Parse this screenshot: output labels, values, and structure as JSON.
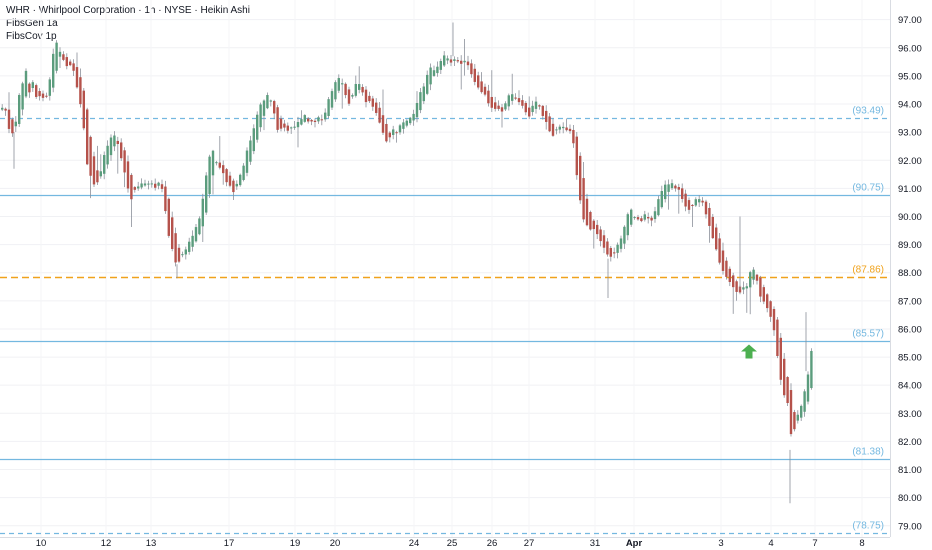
{
  "legend": {
    "title": "WHR · Whirlpool Corporation · 1h · NYSE · Heikin Ashi",
    "ind1": "FibsGen 1a",
    "ind2": "FibsCov 1p"
  },
  "colors": {
    "up": "#5b9c7d",
    "down": "#b5524b",
    "wick": "#8a8f99",
    "level": "#74b8e0",
    "orange": "#f0a21c",
    "arrow": "#4caf50"
  },
  "chart_data": {
    "type": "candlestick",
    "y_axis": {
      "range": [
        78.6,
        97.7
      ],
      "ticks": [
        "97.00",
        "96.00",
        "95.00",
        "94.00",
        "93.00",
        "92.00",
        "91.00",
        "90.00",
        "89.00",
        "88.00",
        "87.00",
        "86.00",
        "85.00",
        "84.00",
        "83.00",
        "82.00",
        "81.00",
        "80.00",
        "79.00"
      ],
      "side": "right"
    },
    "x_axis": {
      "ticks": [
        {
          "label": "10"
        },
        {
          "label": "12"
        },
        {
          "label": "13"
        },
        {
          "label": "17"
        },
        {
          "label": "19"
        },
        {
          "label": "20"
        },
        {
          "label": "24"
        },
        {
          "label": "25"
        },
        {
          "label": "26"
        },
        {
          "label": "27"
        },
        {
          "label": "31"
        },
        {
          "label": "Apr",
          "bold": true
        },
        {
          "label": "3"
        },
        {
          "label": "4"
        },
        {
          "label": "7"
        },
        {
          "label": "8"
        }
      ]
    },
    "levels": [
      {
        "value": 93.49,
        "label": "(93.49)",
        "style": "dashed",
        "color": "#74b8e0"
      },
      {
        "value": 90.75,
        "label": "(90.75)",
        "style": "solid",
        "color": "#74b8e0"
      },
      {
        "value": 87.86,
        "label": "(87.86)",
        "style": "dashed",
        "color": "#f0a21c"
      },
      {
        "value": 85.57,
        "label": "(85.57)",
        "style": "solid",
        "color": "#74b8e0"
      },
      {
        "value": 81.38,
        "label": "(81.38)",
        "style": "solid",
        "color": "#74b8e0"
      },
      {
        "value": 78.75,
        "label": "(78.75)",
        "style": "dashed",
        "color": "#74b8e0"
      }
    ],
    "signal": {
      "type": "up-arrow",
      "value": 85.2
    },
    "path": [
      [
        0,
        93.8
      ],
      [
        3,
        94.0
      ],
      [
        6,
        93.5
      ],
      [
        10,
        92.7
      ],
      [
        12,
        93.1
      ],
      [
        16,
        93.6
      ],
      [
        19,
        94.6
      ],
      [
        22,
        94.8
      ],
      [
        25,
        95.2
      ],
      [
        28,
        94.4
      ],
      [
        31,
        94.9
      ],
      [
        34,
        94.3
      ],
      [
        37,
        94.1
      ],
      [
        40,
        94.6
      ],
      [
        43,
        94.0
      ],
      [
        46,
        94.4
      ],
      [
        50,
        95.2
      ],
      [
        53,
        96.0
      ],
      [
        56,
        96.3
      ],
      [
        59,
        95.8
      ],
      [
        63,
        95.5
      ],
      [
        67,
        95.2
      ],
      [
        70,
        95.4
      ],
      [
        73,
        95.1
      ],
      [
        76,
        94.6
      ],
      [
        79,
        94.0
      ],
      [
        83,
        93.1
      ],
      [
        86,
        91.9
      ],
      [
        89,
        91.5
      ],
      [
        92,
        91.2
      ],
      [
        95,
        91.0
      ],
      [
        98,
        91.5
      ],
      [
        101,
        91.8
      ],
      [
        104,
        92.4
      ],
      [
        107,
        92.6
      ],
      [
        110,
        92.8
      ],
      [
        113,
        92.9
      ],
      [
        116,
        92.6
      ],
      [
        119,
        92.2
      ],
      [
        122,
        91.8
      ],
      [
        125,
        91.3
      ],
      [
        128,
        90.8
      ],
      [
        131,
        90.6
      ],
      [
        134,
        91.0
      ],
      [
        137,
        91.1
      ],
      [
        140,
        91.2
      ],
      [
        143,
        91.1
      ],
      [
        146,
        91.2
      ],
      [
        149,
        91.2
      ],
      [
        152,
        91.1
      ],
      [
        155,
        91.0
      ],
      [
        158,
        91.2
      ],
      [
        161,
        91.0
      ],
      [
        164,
        90.2
      ],
      [
        167,
        89.4
      ],
      [
        170,
        89.0
      ],
      [
        173,
        88.5
      ],
      [
        176,
        88.3
      ],
      [
        179,
        88.5
      ],
      [
        182,
        88.7
      ],
      [
        185,
        88.9
      ],
      [
        188,
        89.1
      ],
      [
        191,
        89.3
      ],
      [
        194,
        89.5
      ],
      [
        197,
        89.8
      ],
      [
        200,
        90.2
      ],
      [
        203,
        90.9
      ],
      [
        206,
        91.8
      ],
      [
        209,
        92.2
      ],
      [
        212,
        92.4
      ],
      [
        215,
        92.0
      ],
      [
        218,
        91.7
      ],
      [
        221,
        91.6
      ],
      [
        224,
        91.3
      ],
      [
        227,
        91.1
      ],
      [
        230,
        91.0
      ],
      [
        233,
        90.9
      ],
      [
        236,
        91.2
      ],
      [
        239,
        91.5
      ],
      [
        242,
        91.8
      ],
      [
        245,
        92.2
      ],
      [
        248,
        92.6
      ],
      [
        251,
        92.9
      ],
      [
        254,
        93.4
      ],
      [
        257,
        93.8
      ],
      [
        260,
        94.0
      ],
      [
        263,
        94.1
      ],
      [
        266,
        94.3
      ],
      [
        269,
        94.2
      ],
      [
        272,
        93.8
      ],
      [
        275,
        93.3
      ],
      [
        278,
        92.9
      ],
      [
        281,
        93.2
      ],
      [
        284,
        93.1
      ],
      [
        287,
        93.1
      ],
      [
        290,
        93.2
      ],
      [
        293,
        93.2
      ],
      [
        296,
        93.4
      ],
      [
        299,
        93.3
      ],
      [
        302,
        93.6
      ],
      [
        305,
        93.5
      ],
      [
        308,
        93.3
      ],
      [
        311,
        93.4
      ],
      [
        314,
        93.3
      ],
      [
        317,
        93.6
      ],
      [
        320,
        93.4
      ],
      [
        323,
        93.6
      ],
      [
        326,
        94.0
      ],
      [
        329,
        94.4
      ],
      [
        332,
        94.6
      ],
      [
        335,
        94.8
      ],
      [
        338,
        94.9
      ],
      [
        341,
        94.7
      ],
      [
        344,
        94.3
      ],
      [
        347,
        94.0
      ],
      [
        350,
        94.2
      ],
      [
        353,
        94.6
      ],
      [
        356,
        94.9
      ],
      [
        359,
        94.6
      ],
      [
        362,
        94.3
      ],
      [
        365,
        94.0
      ],
      [
        368,
        94.1
      ],
      [
        371,
        93.9
      ],
      [
        374,
        93.7
      ],
      [
        377,
        93.5
      ],
      [
        380,
        93.1
      ],
      [
        383,
        92.8
      ],
      [
        386,
        92.6
      ],
      [
        389,
        92.9
      ],
      [
        392,
        93.1
      ],
      [
        395,
        93.0
      ],
      [
        398,
        93.2
      ],
      [
        401,
        93.3
      ],
      [
        404,
        93.4
      ],
      [
        407,
        93.5
      ],
      [
        410,
        93.5
      ],
      [
        413,
        93.7
      ],
      [
        416,
        94.0
      ],
      [
        419,
        94.4
      ],
      [
        422,
        94.6
      ],
      [
        425,
        94.9
      ],
      [
        428,
        95.2
      ],
      [
        431,
        95.3
      ],
      [
        434,
        95.2
      ],
      [
        437,
        95.4
      ],
      [
        440,
        95.6
      ],
      [
        443,
        95.7
      ],
      [
        446,
        95.6
      ],
      [
        449,
        95.5
      ],
      [
        452,
        95.5
      ],
      [
        455,
        95.6
      ],
      [
        458,
        95.5
      ],
      [
        461,
        95.4
      ],
      [
        464,
        95.5
      ],
      [
        467,
        95.4
      ],
      [
        470,
        95.1
      ],
      [
        473,
        94.9
      ],
      [
        476,
        94.6
      ],
      [
        479,
        94.5
      ],
      [
        482,
        94.4
      ],
      [
        485,
        94.2
      ],
      [
        488,
        94.0
      ],
      [
        491,
        93.9
      ],
      [
        494,
        93.8
      ],
      [
        497,
        93.9
      ],
      [
        500,
        93.7
      ],
      [
        503,
        93.9
      ],
      [
        506,
        94.2
      ],
      [
        509,
        94.4
      ],
      [
        512,
        94.3
      ],
      [
        515,
        94.2
      ],
      [
        518,
        94.0
      ],
      [
        521,
        93.9
      ],
      [
        524,
        93.8
      ],
      [
        527,
        93.5
      ],
      [
        530,
        93.8
      ],
      [
        533,
        94.1
      ],
      [
        536,
        94.0
      ],
      [
        539,
        93.8
      ],
      [
        542,
        93.6
      ],
      [
        545,
        93.4
      ],
      [
        548,
        93.1
      ],
      [
        551,
        92.9
      ],
      [
        554,
        93.0
      ],
      [
        557,
        93.1
      ],
      [
        560,
        93.2
      ],
      [
        563,
        93.1
      ],
      [
        566,
        93.1
      ],
      [
        569,
        93.0
      ],
      [
        572,
        92.7
      ],
      [
        575,
        91.7
      ],
      [
        578,
        90.8
      ],
      [
        581,
        90.1
      ],
      [
        584,
        89.7
      ],
      [
        587,
        89.6
      ],
      [
        590,
        89.5
      ],
      [
        593,
        89.5
      ],
      [
        596,
        89.4
      ],
      [
        599,
        89.2
      ],
      [
        602,
        89.0
      ],
      [
        605,
        88.8
      ],
      [
        608,
        88.5
      ],
      [
        611,
        88.6
      ],
      [
        614,
        88.8
      ],
      [
        617,
        89.0
      ],
      [
        620,
        89.2
      ],
      [
        623,
        89.6
      ],
      [
        626,
        90.1
      ],
      [
        629,
        90.3
      ],
      [
        632,
        90.1
      ],
      [
        635,
        89.9
      ],
      [
        638,
        89.8
      ],
      [
        641,
        89.9
      ],
      [
        644,
        90.1
      ],
      [
        647,
        89.9
      ],
      [
        650,
        89.8
      ],
      [
        653,
        90.1
      ],
      [
        656,
        90.5
      ],
      [
        659,
        90.8
      ],
      [
        662,
        91.1
      ],
      [
        665,
        91.1
      ],
      [
        668,
        91.2
      ],
      [
        671,
        91.2
      ],
      [
        674,
        91.0
      ],
      [
        677,
        91.0
      ],
      [
        680,
        90.7
      ],
      [
        683,
        90.5
      ],
      [
        686,
        90.2
      ],
      [
        689,
        90.2
      ],
      [
        692,
        90.4
      ],
      [
        695,
        90.7
      ],
      [
        698,
        90.6
      ],
      [
        701,
        90.5
      ],
      [
        704,
        90.1
      ],
      [
        707,
        89.8
      ],
      [
        710,
        89.4
      ],
      [
        713,
        89.0
      ],
      [
        716,
        88.7
      ],
      [
        719,
        88.3
      ],
      [
        722,
        88.0
      ],
      [
        725,
        87.8
      ],
      [
        728,
        87.7
      ],
      [
        731,
        87.6
      ],
      [
        734,
        87.4
      ],
      [
        737,
        87.1
      ],
      [
        740,
        87.5
      ],
      [
        743,
        87.4
      ],
      [
        746,
        87.6
      ],
      [
        749,
        88.0
      ],
      [
        752,
        88.2
      ],
      [
        755,
        87.8
      ],
      [
        758,
        87.3
      ],
      [
        761,
        87.0
      ],
      [
        764,
        86.9
      ],
      [
        767,
        86.7
      ],
      [
        770,
        86.4
      ],
      [
        773,
        85.9
      ],
      [
        776,
        85.1
      ],
      [
        779,
        84.3
      ],
      [
        782,
        83.8
      ],
      [
        785,
        83.5
      ],
      [
        788,
        83.1
      ],
      [
        791,
        81.7
      ],
      [
        794,
        82.7
      ],
      [
        797,
        83.0
      ],
      [
        800,
        83.3
      ],
      [
        803,
        83.7
      ],
      [
        806,
        84.2
      ],
      [
        809,
        84.9
      ],
      [
        812,
        85.6
      ]
    ]
  }
}
